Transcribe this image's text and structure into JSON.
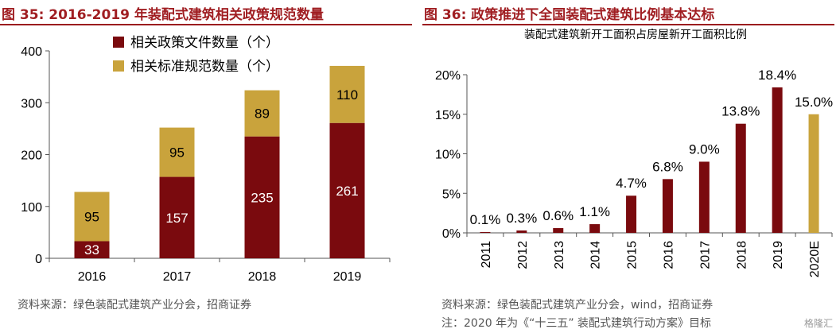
{
  "left": {
    "figure_title": "图 35: 2016-2019 年装配式建筑相关政策规范数量",
    "source": "资料来源：绿色装配式建筑产业分会，招商证券",
    "chart_data": {
      "type": "bar",
      "stacked": true,
      "categories": [
        "2016",
        "2017",
        "2018",
        "2019"
      ],
      "series": [
        {
          "name": "相关政策文件数量（个）",
          "values": [
            33,
            157,
            235,
            261
          ],
          "color": "#7a0a0e"
        },
        {
          "name": "相关标准规范数量（个）",
          "values": [
            95,
            95,
            89,
            110
          ],
          "color": "#c9a33c"
        }
      ],
      "ylim": [
        0,
        400
      ],
      "yticks": [
        "0",
        "100",
        "200",
        "300",
        "400"
      ],
      "legend_position": "top-left",
      "grid": false
    }
  },
  "right": {
    "figure_title": "图 36: 政策推进下全国装配式建筑比例基本达标",
    "source": "资料来源：绿色装配式建筑产业分会，wind，招商证券",
    "note": "注：2020 年为《“十三五” 装配式建筑行动方案》目标",
    "chart_data": {
      "type": "bar",
      "title": "装配式建筑新开工面积占房屋新开工面积比例",
      "categories": [
        "2011",
        "2012",
        "2013",
        "2014",
        "2015",
        "2016",
        "2017",
        "2018",
        "2019",
        "2020E"
      ],
      "values": [
        0.1,
        0.3,
        0.6,
        1.1,
        4.7,
        6.8,
        9.0,
        13.8,
        18.4,
        15.0
      ],
      "value_labels": [
        "0.1%",
        "0.3%",
        "0.6%",
        "1.1%",
        "4.7%",
        "6.8%",
        "9.0%",
        "13.8%",
        "18.4%",
        "15.0%"
      ],
      "bar_colors": [
        "#7a0a0e",
        "#7a0a0e",
        "#7a0a0e",
        "#7a0a0e",
        "#7a0a0e",
        "#7a0a0e",
        "#7a0a0e",
        "#7a0a0e",
        "#7a0a0e",
        "#c9a33c"
      ],
      "ylim": [
        0,
        20
      ],
      "yticks": [
        "0%",
        "5%",
        "10%",
        "15%",
        "20%"
      ],
      "grid": false
    }
  },
  "watermark": "格隆汇"
}
